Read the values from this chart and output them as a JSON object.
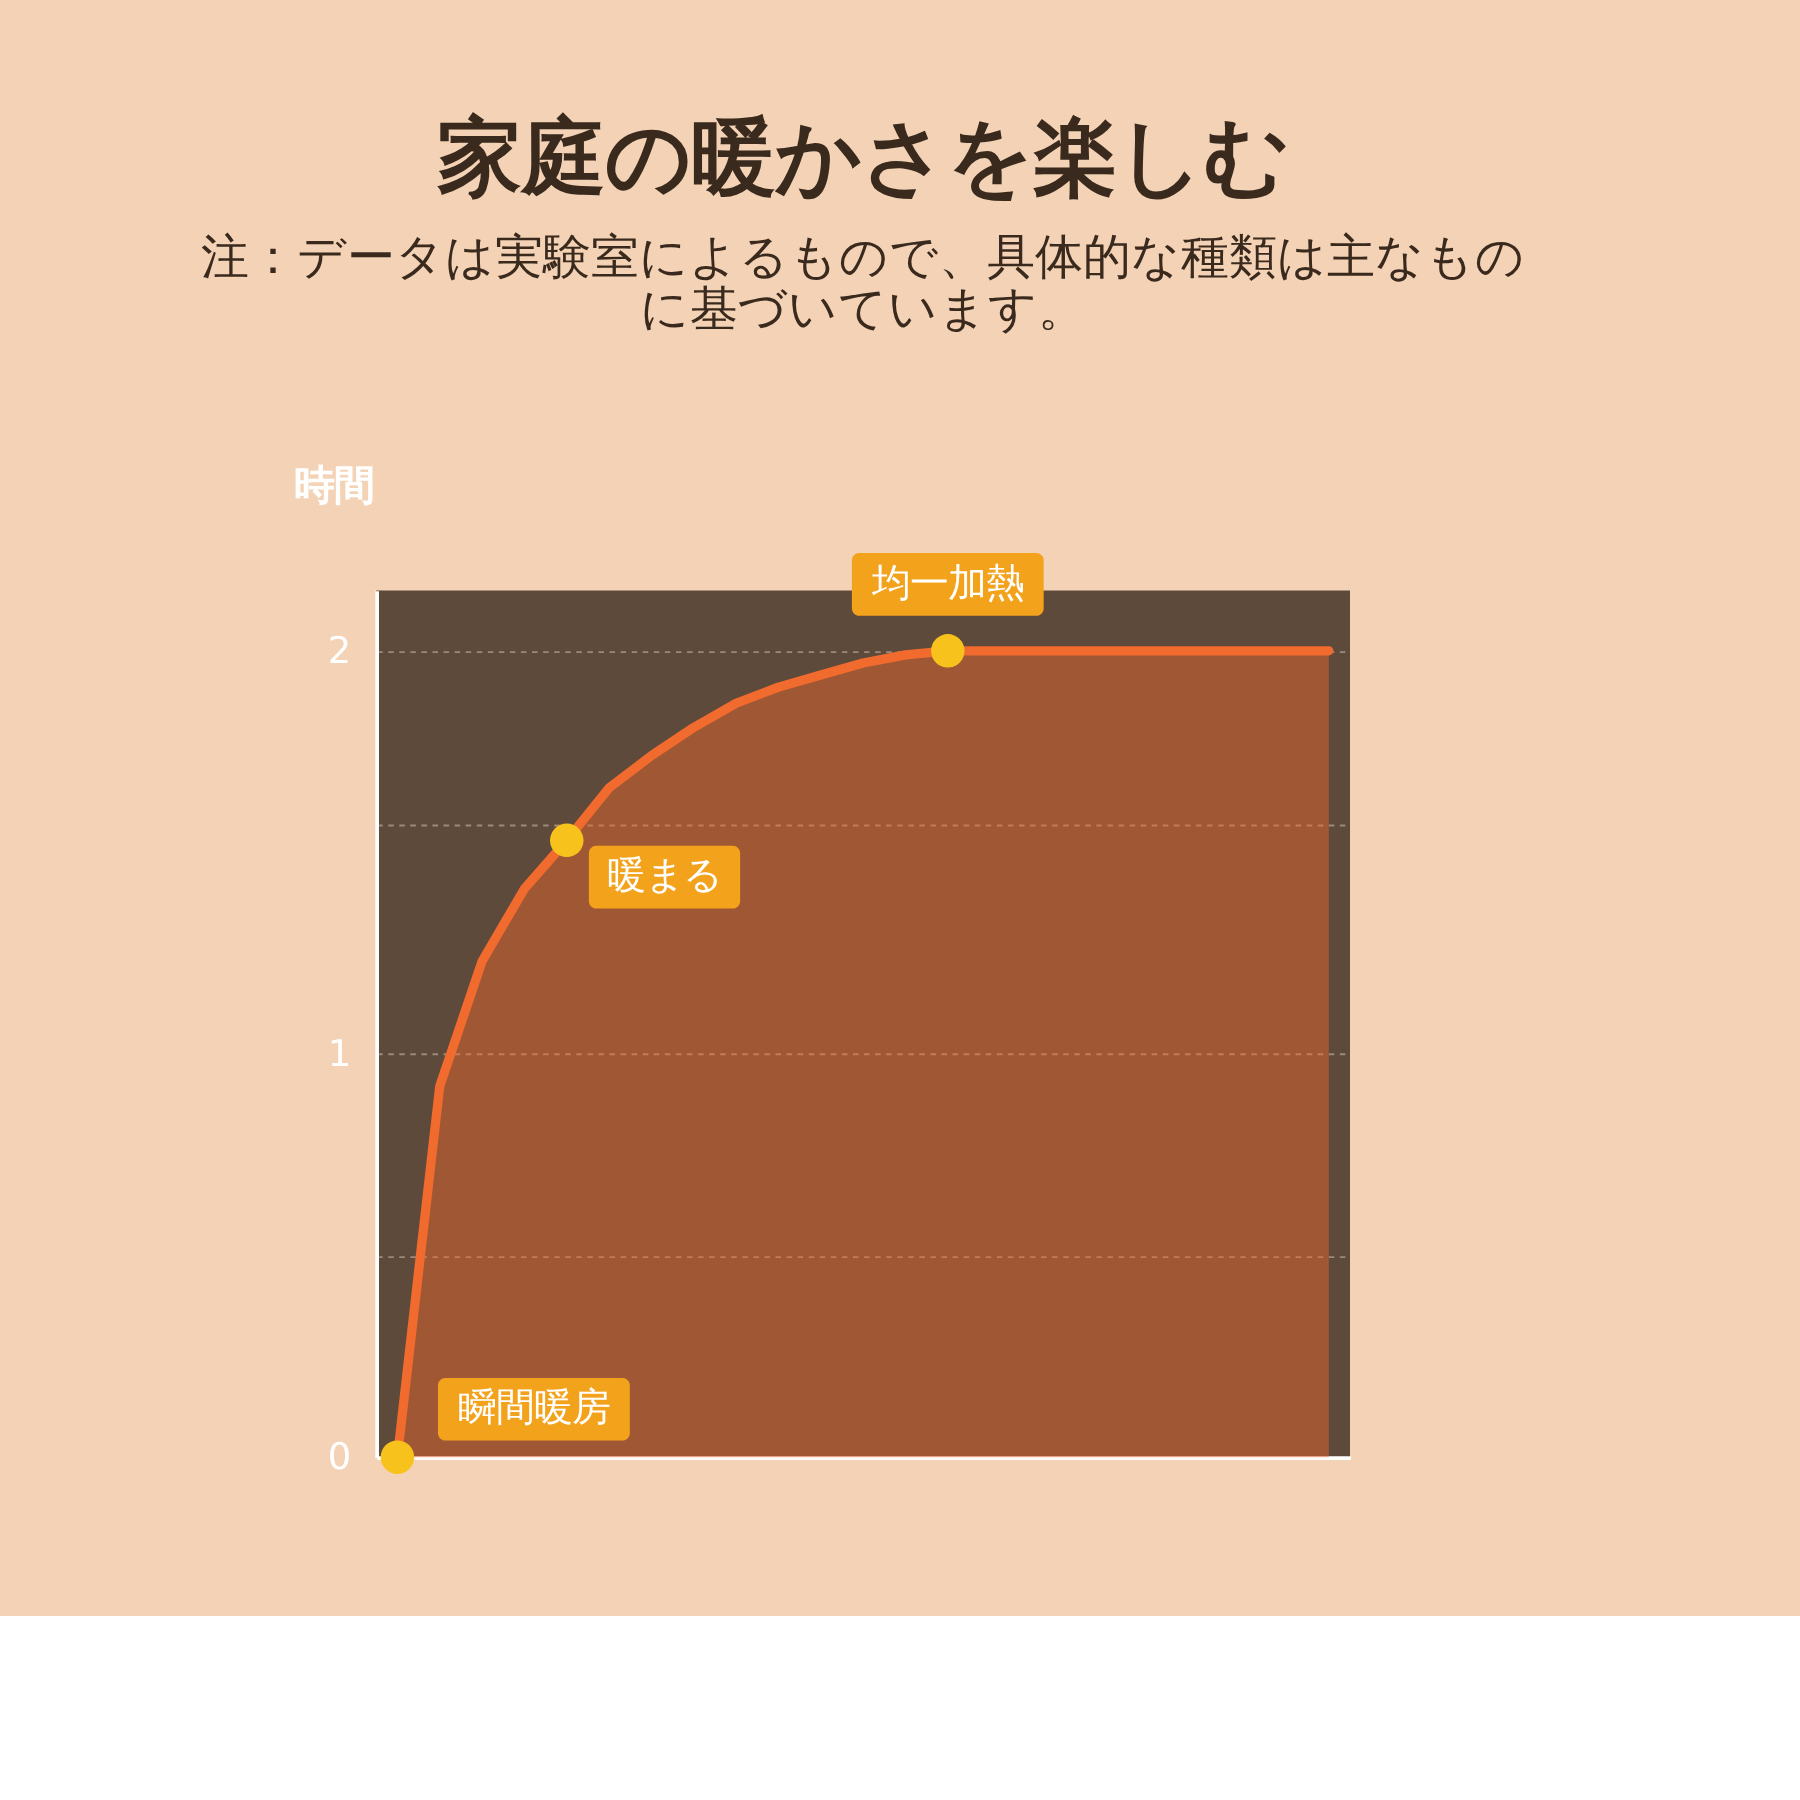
{
  "chart_data": {
    "type": "area",
    "title": "家庭の暖かさを楽しむ",
    "subtitle": "注：データは実験室によるもので、具体的な種類は主なものに基づいています。",
    "ylabel": "時間",
    "categories": [
      null,
      null,
      null,
      null,
      null,
      null,
      null,
      null,
      null,
      null,
      null,
      null,
      null,
      null,
      null,
      null,
      null,
      null,
      null,
      null,
      null,
      null,
      null
    ],
    "series": [
      {
        "color": "#f26b2e",
        "values": [
          0,
          0.92,
          1.23,
          1.41,
          1.53,
          1.66,
          1.74,
          1.81,
          1.87,
          1.91,
          1.94,
          1.97,
          1.99,
          2.0,
          2.0,
          2.0,
          2.0,
          2.0,
          2.0,
          2.0,
          2.0,
          2.0,
          2.0
        ]
      },
      {
        "type": "scatter",
        "marker": "circle",
        "color": "#f7c21b",
        "values": [
          0,
          null,
          null,
          null,
          1.53,
          null,
          null,
          null,
          null,
          null,
          null,
          null,
          null,
          2.0,
          null,
          null,
          null,
          null,
          null,
          null,
          null,
          null,
          null
        ]
      }
    ],
    "ylim": [
      0,
      2.15
    ],
    "yticks": [
      0,
      {
        "value": 0.5,
        "label": null
      },
      1,
      {
        "value": 1.57,
        "label": null
      },
      2
    ],
    "annotations": [
      "瞬間暖房",
      "暖まる",
      "均一加熱"
    ],
    "grid": "y",
    "marker": "none",
    "line_style": "solid"
  }
}
